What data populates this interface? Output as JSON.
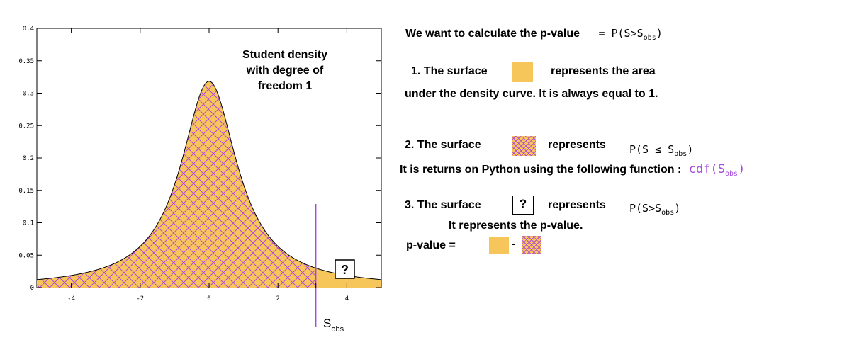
{
  "chart_data": {
    "type": "area",
    "title": "",
    "xlabel": "",
    "ylabel": "",
    "xlim": [
      -5,
      5
    ],
    "ylim": [
      0,
      0.4
    ],
    "x_ticks": [
      -4,
      -2,
      0,
      2,
      4
    ],
    "x_tick_labels": [
      "-4",
      "-2",
      "0",
      "2",
      "4"
    ],
    "y_ticks": [
      0,
      0.05,
      0.1,
      0.15,
      0.2,
      0.25,
      0.3,
      0.35,
      0.4
    ],
    "y_tick_labels": [
      "0",
      "0.05",
      "0.1",
      "0.15",
      "0.2",
      "0.25",
      "0.3",
      "0.35",
      "0.4"
    ],
    "curve": "Student t density, 1 degree of freedom",
    "peak": {
      "x": 0,
      "y": 0.318
    },
    "s_obs": 3.1,
    "fill_color": "#f7c65a",
    "hatch_color": "#b44ad6",
    "annotation_lines": [
      "Student density",
      "with degree of",
      "freedom 1"
    ],
    "question_mark": "?",
    "sobs_label": {
      "main": "S",
      "sub": "obs"
    }
  },
  "right": {
    "line1": {
      "text": "We want to calculate the p-value",
      "formula": "= P(S>S",
      "sub": "obs",
      "close": ")"
    },
    "item1": {
      "pre": "1. The surface",
      "post": "represents the area",
      "line2": "under the density curve. It is always equal to 1."
    },
    "item2": {
      "pre": "2. The surface",
      "post": "represents",
      "formula": "P(S ≤ S",
      "sub": "obs",
      "close": ")",
      "line2": "It is returns on Python using the following function :",
      "code": "cdf(S",
      "code_sub": "obs",
      "code_close": ")"
    },
    "item3": {
      "pre": "3. The surface",
      "box": "?",
      "post": "represents",
      "formula": "P(S>S",
      "sub": "obs",
      "close": ")",
      "line2": "It represents the p-value."
    },
    "pvalue": {
      "label": "p-value =",
      "minus": "-"
    }
  }
}
